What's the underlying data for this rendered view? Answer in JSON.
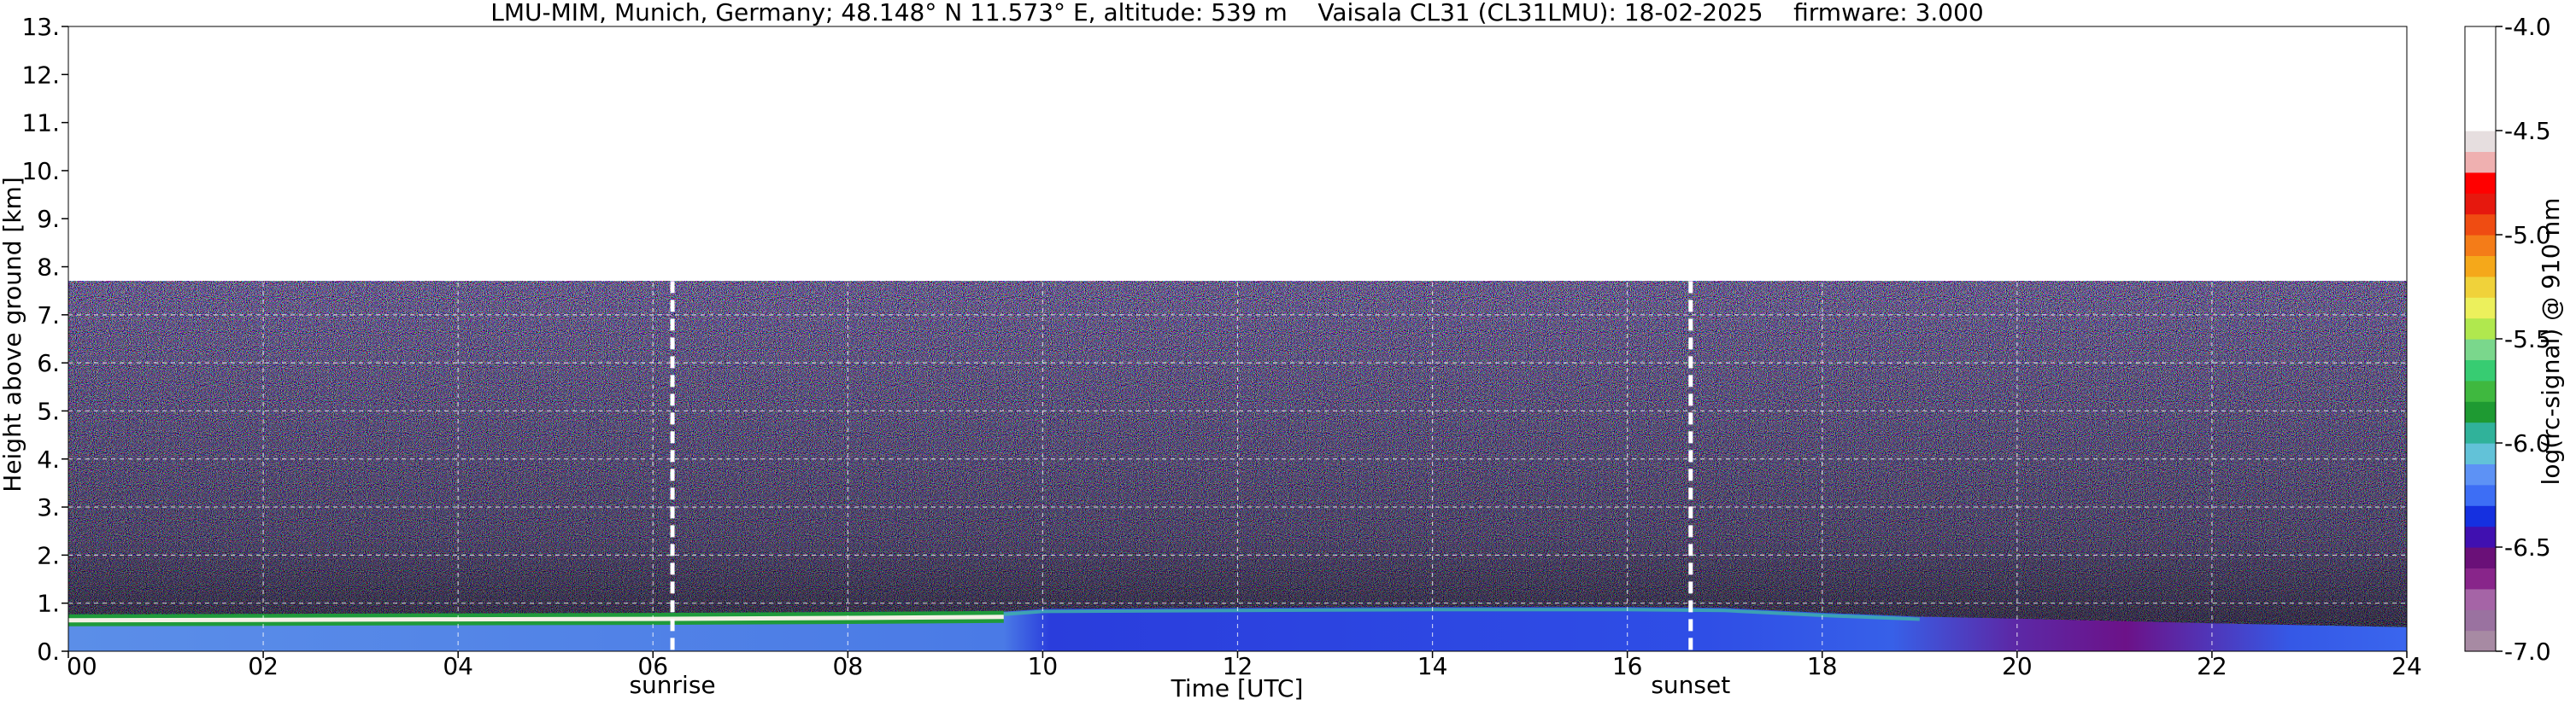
{
  "chart_data": {
    "type": "heatmap",
    "title": "LMU-MIM, Munich, Germany; 48.148° N 11.573° E, altitude: 539 m    Vaisala CL31 (CL31LMU): 18-02-2025    firmware: 3.000",
    "xlabel": "Time [UTC]",
    "ylabel": "Height above ground [km]",
    "colorbar_label": "log(rc-signal) @ 910 nm",
    "xlim": [
      0,
      24
    ],
    "ylim": [
      0,
      13
    ],
    "zlim": [
      -7.0,
      -4.0
    ],
    "grid": true,
    "x_ticks": [
      0,
      2,
      4,
      6,
      8,
      10,
      12,
      14,
      16,
      18,
      20,
      22,
      24
    ],
    "x_tick_labels": [
      "00",
      "02",
      "04",
      "06",
      "08",
      "10",
      "12",
      "14",
      "16",
      "18",
      "20",
      "22",
      "24"
    ],
    "y_ticks": [
      0,
      1,
      2,
      3,
      4,
      5,
      6,
      7,
      8,
      9,
      10,
      11,
      12,
      13
    ],
    "y_tick_labels": [
      "0.",
      "1.",
      "2.",
      "3.",
      "4.",
      "5.",
      "6.",
      "7.",
      "8.",
      "9.",
      "10.",
      "11.",
      "12.",
      "13."
    ],
    "colorbar_ticks": [
      -4.0,
      -4.5,
      -5.0,
      -5.5,
      -6.0,
      -6.5,
      -7.0
    ],
    "colorbar_tick_labels": [
      "-4.0",
      "-4.5",
      "-5.0",
      "-5.5",
      "-6.0",
      "-6.5",
      "-7.0"
    ],
    "colorbar_colors": [
      "#a78aa3",
      "#9a72a0",
      "#a564a6",
      "#88258a",
      "#6a1078",
      "#4010b0",
      "#1530e0",
      "#3d6ef5",
      "#5d92f5",
      "#62c2d8",
      "#30b29a",
      "#1e9a32",
      "#3fb83f",
      "#37cc72",
      "#7ad78c",
      "#b0e84e",
      "#ecf05c",
      "#f0d23a",
      "#f5a81a",
      "#f47c18",
      "#ef4c12",
      "#e6180e",
      "#ff0000",
      "#efb0b0",
      "#e6dedf",
      "#ffffff"
    ],
    "data_range_top_km": 7.7,
    "event_lines": [
      {
        "label": "sunrise",
        "time": 6.2
      },
      {
        "label": "sunset",
        "time": 16.65
      }
    ],
    "boundary_layer": [
      {
        "time": 0,
        "top_km": 0.75
      },
      {
        "time": 2,
        "top_km": 0.76
      },
      {
        "time": 4,
        "top_km": 0.77
      },
      {
        "time": 6,
        "top_km": 0.78
      },
      {
        "time": 8,
        "top_km": 0.8
      },
      {
        "time": 9.6,
        "top_km": 0.82
      },
      {
        "time": 10,
        "top_km": 0.88
      },
      {
        "time": 12,
        "top_km": 0.9
      },
      {
        "time": 14,
        "top_km": 0.92
      },
      {
        "time": 16,
        "top_km": 0.92
      },
      {
        "time": 17,
        "top_km": 0.9
      },
      {
        "time": 18,
        "top_km": 0.8
      },
      {
        "time": 19,
        "top_km": 0.72
      },
      {
        "time": 20,
        "top_km": 0.68
      },
      {
        "time": 22,
        "top_km": 0.58
      },
      {
        "time": 24,
        "top_km": 0.5
      }
    ]
  }
}
